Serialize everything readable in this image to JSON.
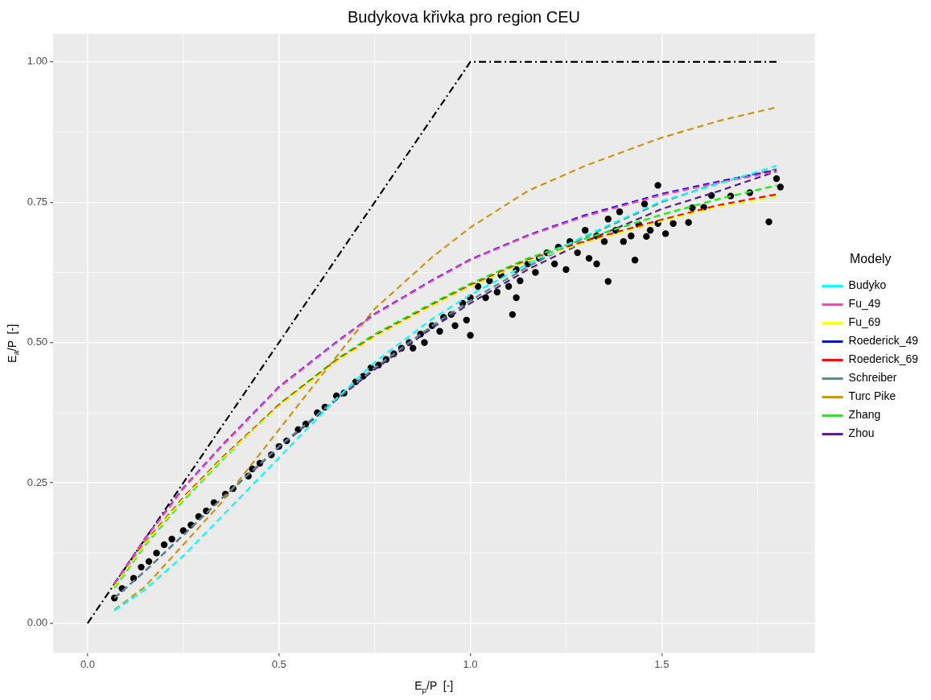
{
  "chart_data": {
    "type": "line",
    "title": "Budykova křivka pro region CEU",
    "xlabel": "E$_{p}$/P  [-]",
    "ylabel": "E$_{a}$/P  [-]",
    "legend_title": "Modely",
    "legend": "right",
    "grid": true,
    "marker": "none",
    "line_style": "dashed",
    "xlim": [
      -0.09,
      1.9
    ],
    "ylim": [
      -0.053,
      1.05
    ],
    "xticks": [
      {
        "value": 0,
        "label": "0.0"
      },
      {
        "value": 0.5,
        "label": "0.5"
      },
      {
        "value": 1,
        "label": "1.0"
      },
      {
        "value": 1.5,
        "label": "1.5"
      }
    ],
    "yticks": [
      {
        "value": 0,
        "label": "0.00"
      },
      {
        "value": 0.25,
        "label": "0.25"
      },
      {
        "value": 0.5,
        "label": "0.50"
      },
      {
        "value": 0.75,
        "label": "0.75"
      },
      {
        "value": 1,
        "label": "1.00"
      }
    ],
    "x": [
      0.07,
      0.15,
      0.25,
      0.35,
      0.5,
      0.65,
      0.75,
      0.9,
      1.0,
      1.15,
      1.3,
      1.5,
      1.65,
      1.8
    ],
    "series": [
      {
        "name": "Budyko",
        "color": "#00ffff",
        "values": [
          0.023,
          0.06,
          0.12,
          0.19,
          0.295,
          0.4,
          0.465,
          0.542,
          0.585,
          0.64,
          0.69,
          0.752,
          0.783,
          0.815
        ]
      },
      {
        "name": "Fu_49",
        "color": "#ff3eb5",
        "values": [
          0.07,
          0.15,
          0.24,
          0.315,
          0.42,
          0.5,
          0.55,
          0.61,
          0.647,
          0.69,
          0.725,
          0.763,
          0.785,
          0.805
        ]
      },
      {
        "name": "Fu_69",
        "color": "#ffff00",
        "values": [
          0.066,
          0.142,
          0.222,
          0.292,
          0.387,
          0.466,
          0.51,
          0.565,
          0.6,
          0.645,
          0.678,
          0.716,
          0.742,
          0.76
        ]
      },
      {
        "name": "Roederick_49",
        "color": "#0000ff",
        "values": [
          0.071,
          0.151,
          0.241,
          0.316,
          0.421,
          0.501,
          0.551,
          0.611,
          0.648,
          0.691,
          0.727,
          0.765,
          0.787,
          0.807
        ]
      },
      {
        "name": "Roederick_69",
        "color": "#ff0000",
        "values": [
          0.067,
          0.144,
          0.224,
          0.294,
          0.389,
          0.468,
          0.512,
          0.567,
          0.602,
          0.647,
          0.681,
          0.719,
          0.745,
          0.764
        ]
      },
      {
        "name": "Schreiber",
        "color": "#528b8b",
        "values": [
          0.045,
          0.093,
          0.157,
          0.222,
          0.315,
          0.4,
          0.455,
          0.53,
          0.575,
          0.635,
          0.688,
          0.75,
          0.785,
          0.809
        ]
      },
      {
        "name": "Turc Pike",
        "color": "#cd950c",
        "values": [
          0.024,
          0.065,
          0.14,
          0.215,
          0.345,
          0.475,
          0.56,
          0.652,
          0.705,
          0.77,
          0.815,
          0.865,
          0.895,
          0.919
        ]
      },
      {
        "name": "Zhang",
        "color": "#00ff00",
        "values": [
          0.063,
          0.139,
          0.219,
          0.29,
          0.39,
          0.47,
          0.515,
          0.57,
          0.605,
          0.65,
          0.685,
          0.728,
          0.756,
          0.78
        ]
      },
      {
        "name": "Zhou",
        "color": "#551a8b",
        "values": [
          0.045,
          0.093,
          0.157,
          0.222,
          0.313,
          0.398,
          0.452,
          0.526,
          0.57,
          0.63,
          0.68,
          0.738,
          0.77,
          0.805
        ]
      },
      {
        "type": "line",
        "line_style": "dashdot",
        "color": "#000000",
        "x": [
          0,
          1,
          1.8
        ],
        "values": [
          0,
          1,
          1
        ]
      },
      {
        "type": "scatter",
        "marker": "circle",
        "color": "#000000",
        "x": [
          0.07,
          0.09,
          0.12,
          0.14,
          0.16,
          0.18,
          0.2,
          0.22,
          0.25,
          0.27,
          0.29,
          0.31,
          0.33,
          0.36,
          0.38,
          0.42,
          0.43,
          0.45,
          0.48,
          0.5,
          0.52,
          0.55,
          0.57,
          0.6,
          0.62,
          0.65,
          0.67,
          0.7,
          0.72,
          0.74,
          0.76,
          0.78,
          0.8,
          0.82,
          0.84,
          0.85,
          0.87,
          0.88,
          0.9,
          0.92,
          0.93,
          0.95,
          0.96,
          0.98,
          0.99,
          1.0,
          1.0,
          1.11,
          1.12,
          1.36,
          1.33,
          1.43,
          1.39,
          1.49,
          1.02,
          1.04,
          1.05,
          1.07,
          1.08,
          1.1,
          1.12,
          1.13,
          1.15,
          1.17,
          1.18,
          1.2,
          1.22,
          1.23,
          1.25,
          1.26,
          1.28,
          1.3,
          1.31,
          1.33,
          1.35,
          1.36,
          1.38,
          1.4,
          1.42,
          1.44,
          1.455,
          1.47,
          1.46,
          1.51,
          1.53,
          1.57,
          1.58,
          1.61,
          1.63,
          1.68,
          1.73,
          1.78,
          1.8,
          1.81,
          1.49
        ],
        "values": [
          0.045,
          0.062,
          0.08,
          0.1,
          0.11,
          0.125,
          0.14,
          0.15,
          0.165,
          0.175,
          0.19,
          0.2,
          0.215,
          0.23,
          0.24,
          0.262,
          0.275,
          0.285,
          0.3,
          0.315,
          0.325,
          0.345,
          0.355,
          0.375,
          0.385,
          0.405,
          0.41,
          0.43,
          0.44,
          0.455,
          0.46,
          0.47,
          0.48,
          0.49,
          0.5,
          0.49,
          0.515,
          0.5,
          0.53,
          0.52,
          0.545,
          0.55,
          0.53,
          0.57,
          0.54,
          0.58,
          0.513,
          0.55,
          0.58,
          0.609,
          0.64,
          0.647,
          0.733,
          0.78,
          0.6,
          0.58,
          0.61,
          0.59,
          0.62,
          0.6,
          0.63,
          0.61,
          0.64,
          0.625,
          0.65,
          0.66,
          0.64,
          0.67,
          0.63,
          0.68,
          0.66,
          0.7,
          0.65,
          0.69,
          0.68,
          0.72,
          0.7,
          0.68,
          0.69,
          0.71,
          0.747,
          0.7,
          0.689,
          0.694,
          0.712,
          0.714,
          0.74,
          0.741,
          0.762,
          0.761,
          0.767,
          0.715,
          0.792,
          0.777,
          0.712
        ]
      }
    ]
  }
}
